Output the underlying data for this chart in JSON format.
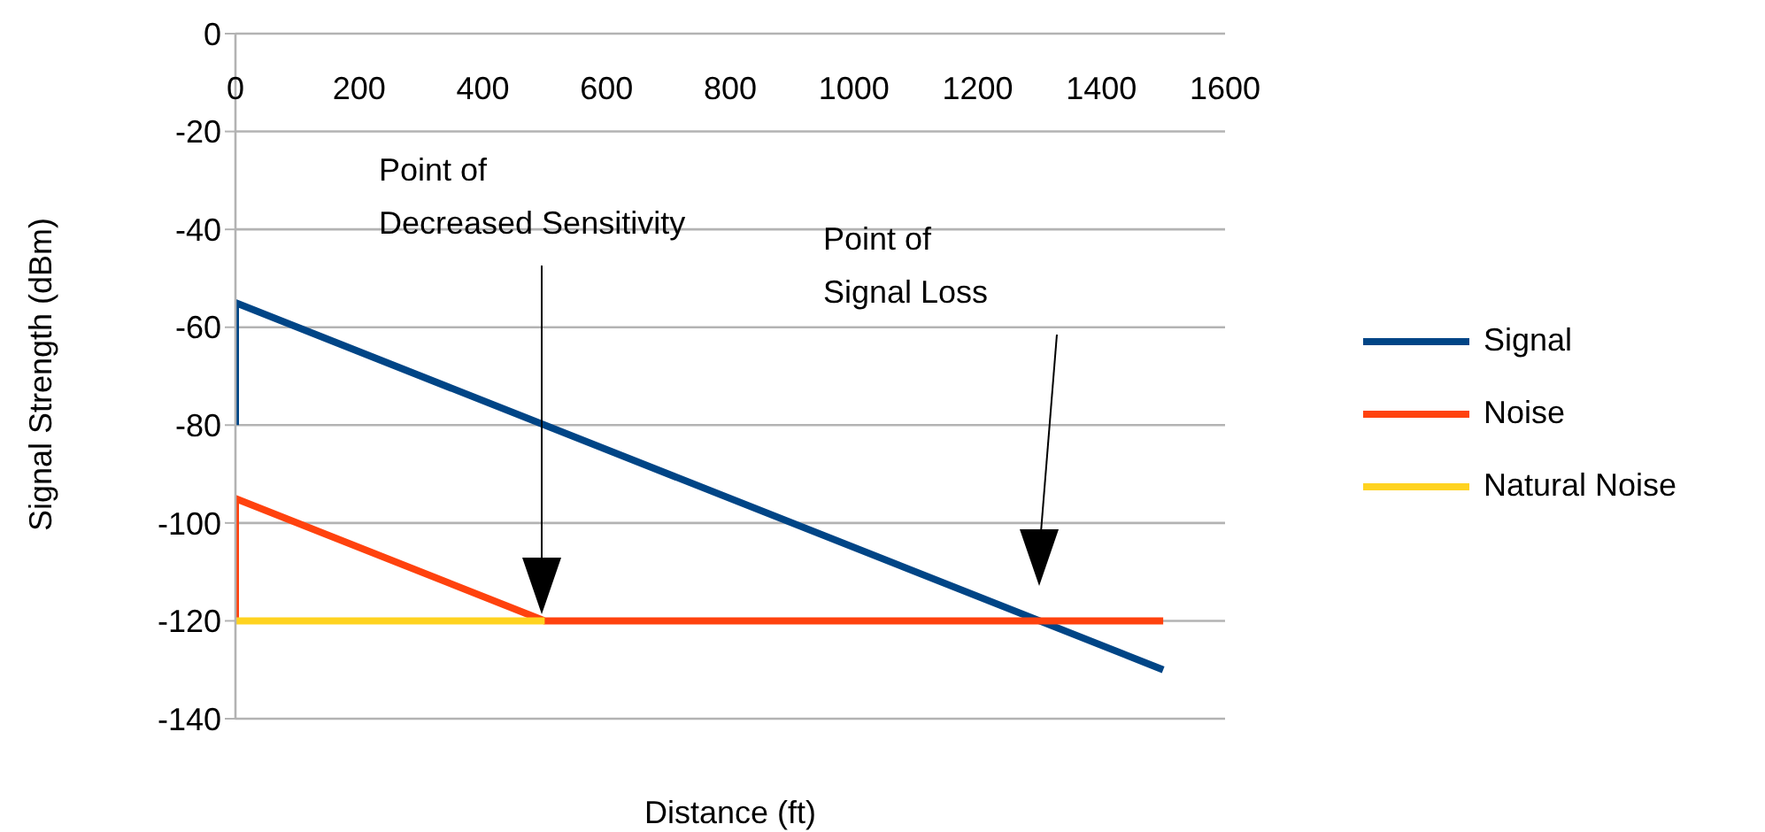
{
  "chart_data": {
    "type": "line",
    "xlabel": "Distance (ft)",
    "ylabel": "Signal Strength (dBm)",
    "xlim": [
      0,
      1600
    ],
    "xticks": [
      0,
      200,
      400,
      600,
      800,
      1000,
      1200,
      1400,
      1600
    ],
    "ylim": [
      -140,
      0
    ],
    "yticks": [
      -140,
      -120,
      -100,
      -80,
      -60,
      -40,
      -20,
      0
    ],
    "grid": "y",
    "legend": "right",
    "marker": "none",
    "series": [
      {
        "name": "Signal",
        "color": "#004586",
        "x": [
          0,
          0,
          1500
        ],
        "values": [
          -80,
          -55,
          -130
        ]
      },
      {
        "name": "Noise",
        "color": "#ff420e",
        "x": [
          0,
          0,
          500,
          1500
        ],
        "values": [
          -120,
          -95,
          -120,
          -120
        ]
      },
      {
        "name": "Natural Noise",
        "color": "#ffd320",
        "x": [
          0,
          500
        ],
        "values": [
          -120,
          -120
        ]
      }
    ],
    "annotations": [
      "Point of\nDecreased Sensitivity",
      "Point of\nSignal Loss"
    ]
  }
}
